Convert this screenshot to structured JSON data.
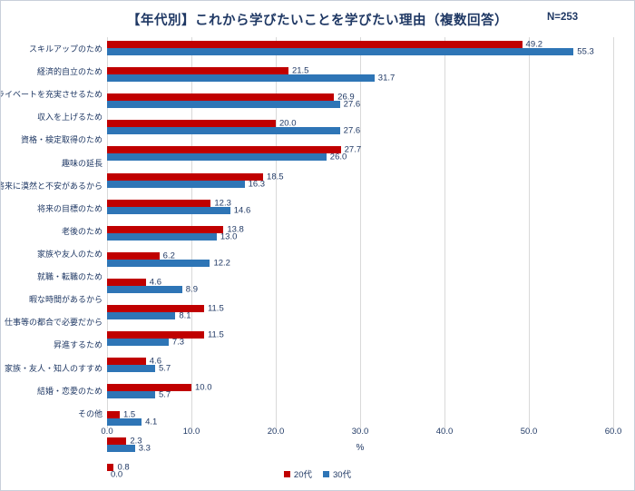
{
  "title": "【年代別】これから学びたいことを学びたい理由（複数回答）",
  "n_label": "N=253",
  "colors": {
    "series_20s": "#c00000",
    "series_30s": "#2e75b6",
    "text": "#1f3864",
    "gridline": "#d9d9d9",
    "frame_border": "#c9cfda",
    "background": "#ffffff"
  },
  "chart_data": {
    "type": "bar",
    "orientation": "horizontal",
    "title": "【年代別】これから学びたいことを学びたい理由（複数回答）",
    "annotation": "N=253",
    "categories": [
      "スキルアップのため",
      "経済的自立のため",
      "プライベートを充実させるため",
      "収入を上げるため",
      "資格・検定取得のため",
      "趣味の延長",
      "将来に漠然と不安があるから",
      "将来の目標のため",
      "老後のため",
      "家族や友人のため",
      "就職・転職のため",
      "暇な時間があるから",
      "仕事等の都合で必要だから",
      "昇進するため",
      "家族・友人・知人のすすめ",
      "結婚・恋愛のため",
      "その他"
    ],
    "series": [
      {
        "name": "20代",
        "color": "#c00000",
        "values": [
          49.2,
          21.5,
          26.9,
          20.0,
          27.7,
          18.5,
          12.3,
          13.8,
          6.2,
          4.6,
          11.5,
          11.5,
          4.6,
          10.0,
          1.5,
          2.3,
          0.8
        ]
      },
      {
        "name": "30代",
        "color": "#2e75b6",
        "values": [
          55.3,
          31.7,
          27.6,
          27.6,
          26.0,
          16.3,
          14.6,
          13.0,
          12.2,
          8.9,
          8.1,
          7.3,
          5.7,
          5.7,
          4.1,
          3.3,
          0.0
        ]
      }
    ],
    "xlabel": "%",
    "xlim": [
      0,
      60
    ],
    "xticks": [
      0.0,
      10.0,
      20.0,
      30.0,
      40.0,
      50.0,
      60.0
    ],
    "value_labels": true,
    "grid": true,
    "legend_position": "bottom"
  }
}
